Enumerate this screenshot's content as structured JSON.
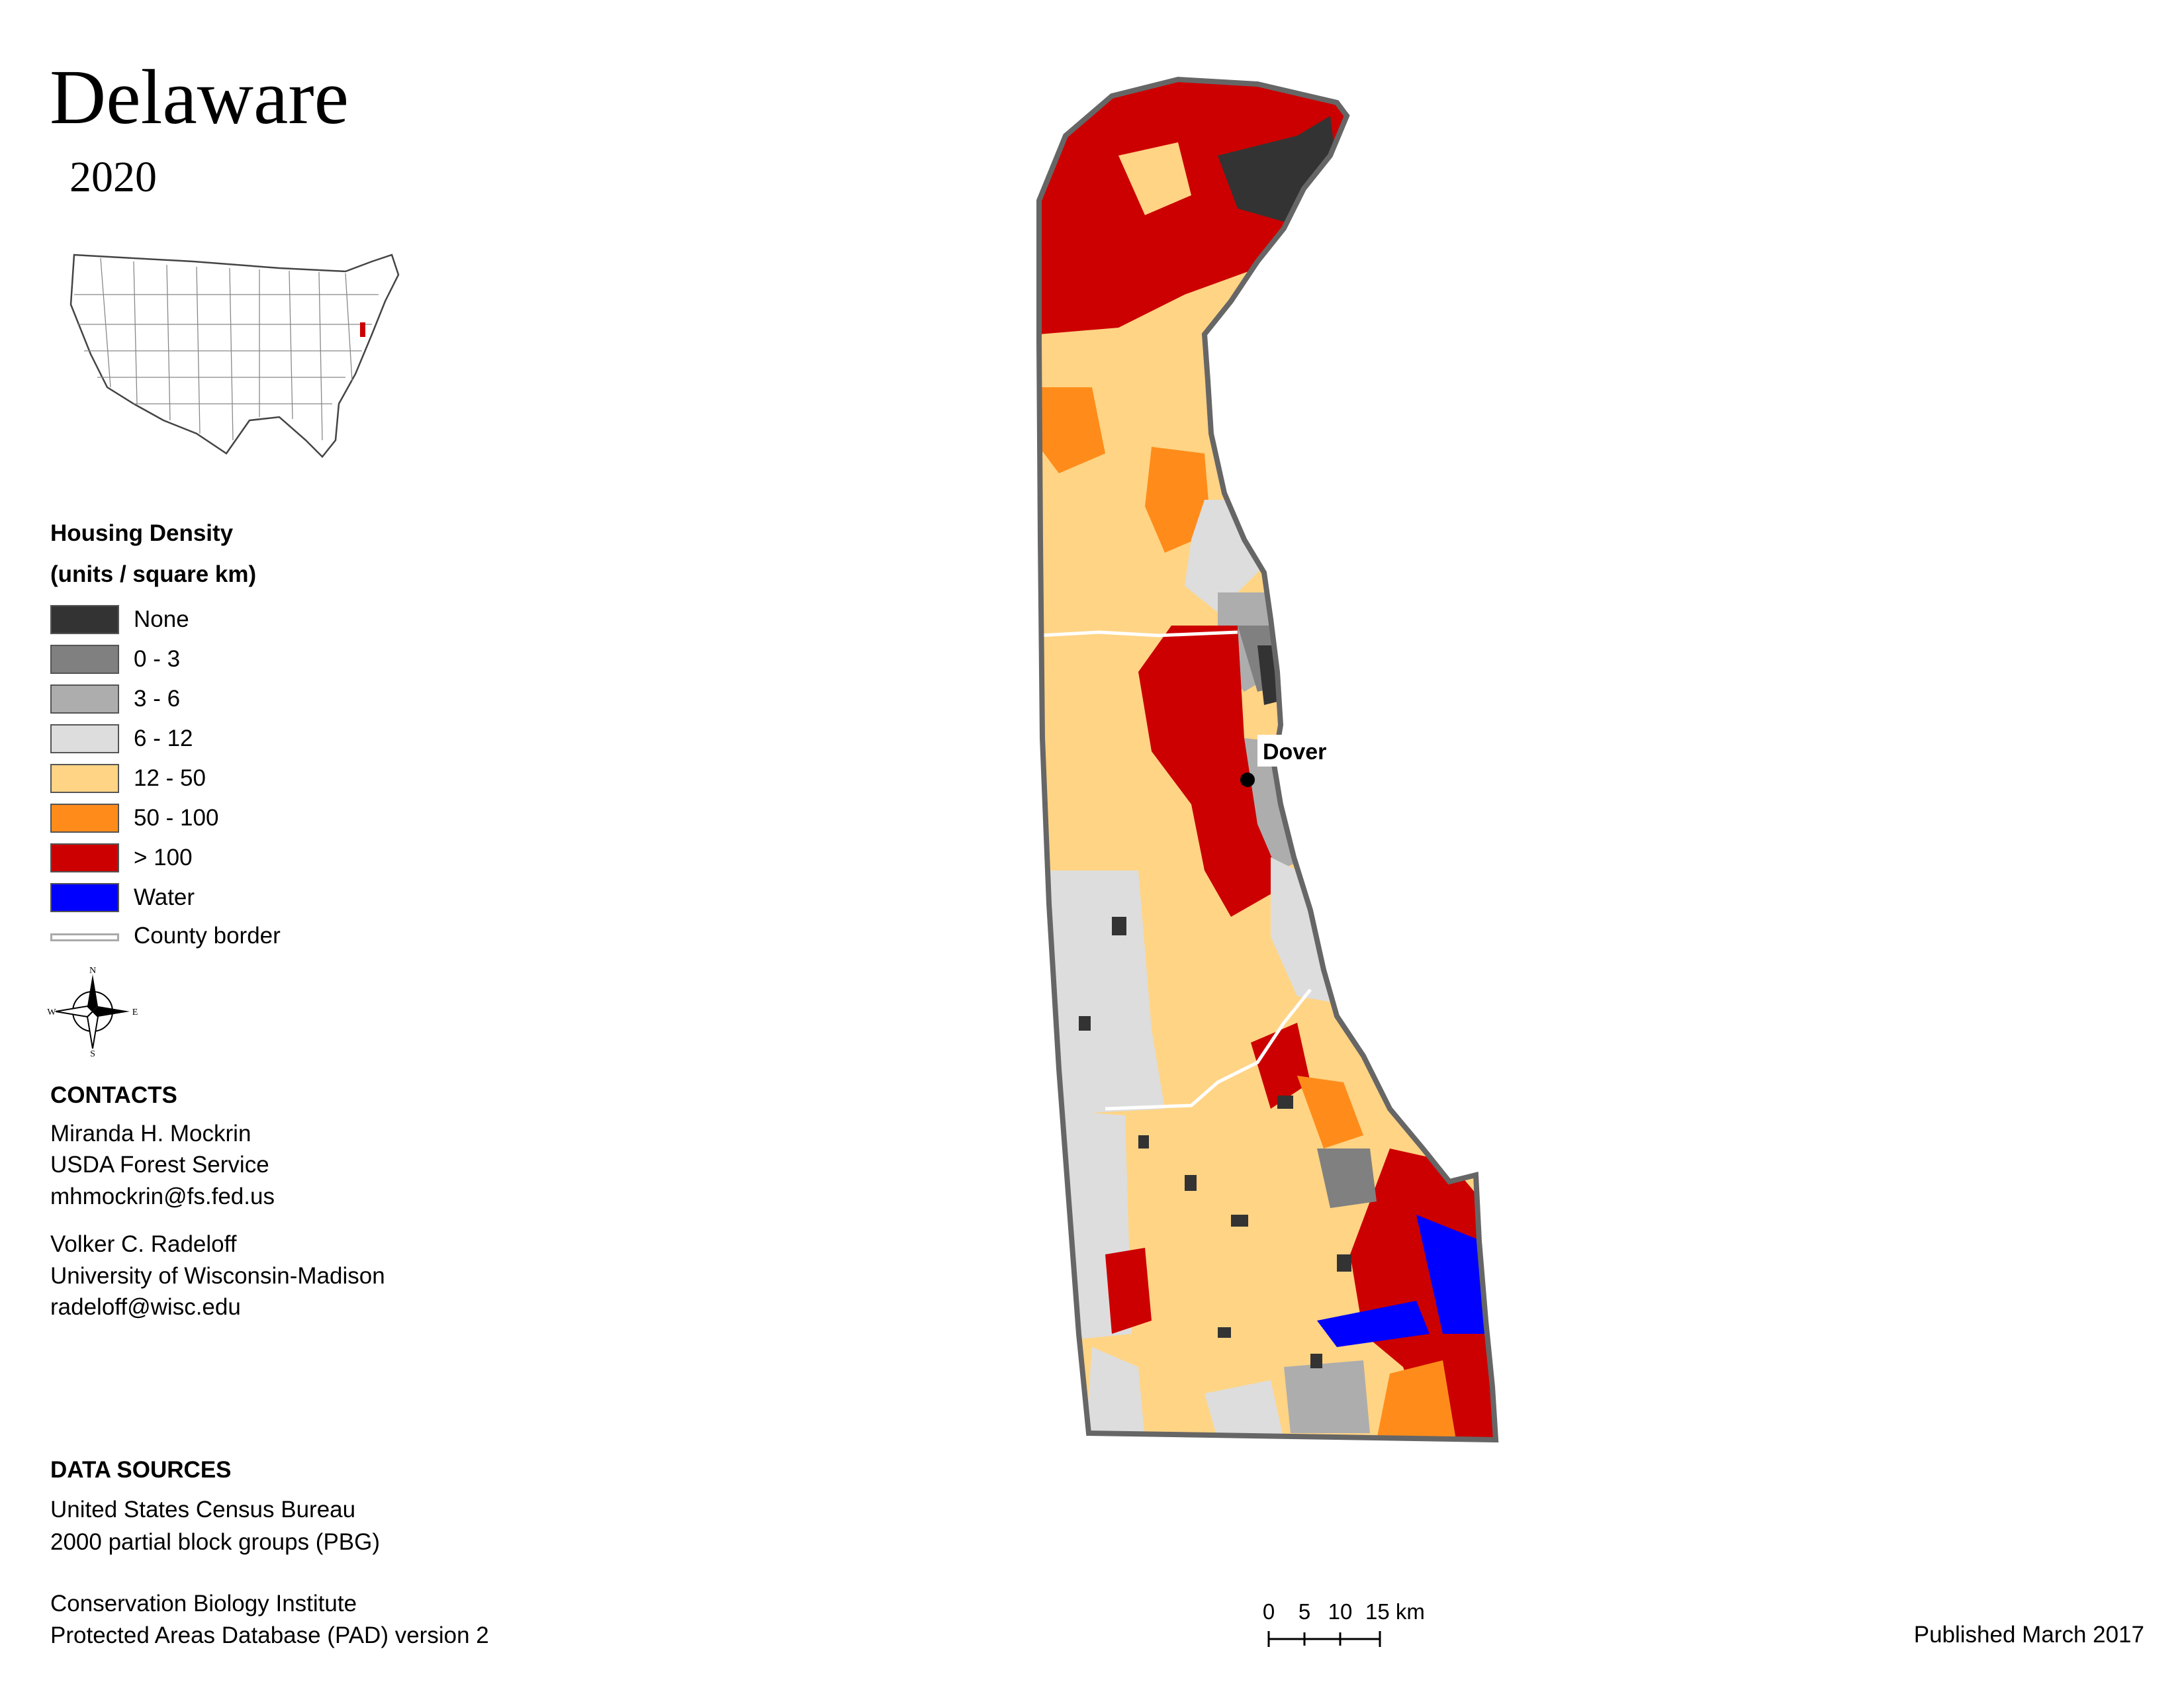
{
  "map": {
    "title": "Delaware",
    "year": "2020",
    "city_label": "Dover"
  },
  "legend": {
    "title": "Housing Density",
    "subtitle": "(units / square km)",
    "items": [
      {
        "label": "None",
        "color": "#333333"
      },
      {
        "label": "0 - 3",
        "color": "#808080"
      },
      {
        "label": "3 - 6",
        "color": "#adadad"
      },
      {
        "label": "6 - 12",
        "color": "#dddddd"
      },
      {
        "label": "12 - 50",
        "color": "#ffd485"
      },
      {
        "label": "50 - 100",
        "color": "#ff8c1a"
      },
      {
        "label": "> 100",
        "color": "#cc0000"
      },
      {
        "label": "Water",
        "color": "#0000ff"
      }
    ],
    "county_border_label": "County border"
  },
  "compass": {
    "n": "N",
    "s": "S",
    "e": "E",
    "w": "W"
  },
  "contacts": {
    "heading": "CONTACTS",
    "people": [
      {
        "name": "Miranda H. Mockrin",
        "org": "USDA Forest Service",
        "email": "mhmockrin@fs.fed.us"
      },
      {
        "name": "Volker C. Radeloff",
        "org": "University of Wisconsin-Madison",
        "email": "radeloff@wisc.edu"
      }
    ]
  },
  "data_sources": {
    "heading": "DATA SOURCES",
    "sources": [
      {
        "line1": "United States Census Bureau",
        "line2": "2000 partial block groups (PBG)"
      },
      {
        "line1": "Conservation Biology Institute",
        "line2": "Protected Areas Database (PAD) version 2"
      }
    ]
  },
  "scale_bar": {
    "labels": [
      "0",
      "5",
      "10",
      "15 km"
    ]
  },
  "published": "Published March 2017"
}
